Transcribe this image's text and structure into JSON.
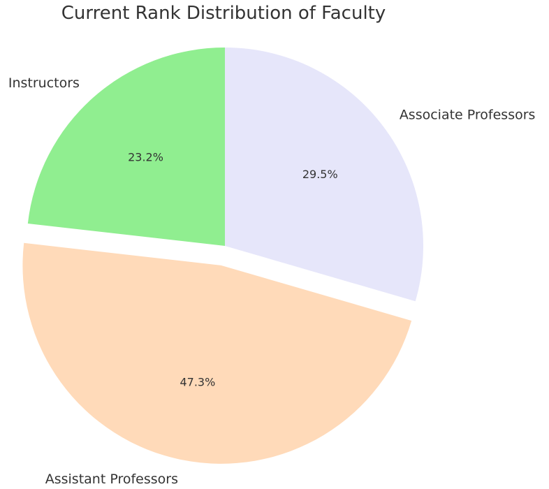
{
  "chart_data": {
    "type": "pie",
    "title": "Current Rank Distribution of Faculty",
    "start_angle_deg": 90,
    "direction": "counterclockwise",
    "slices": [
      {
        "label": "Instructors",
        "value": 23.2,
        "pct_label": "23.2%",
        "color": "#90ee90",
        "explode": 0
      },
      {
        "label": "Assistant Professors",
        "value": 47.3,
        "pct_label": "47.3%",
        "color": "#ffdab9",
        "explode": 0.1
      },
      {
        "label": "Associate Professors",
        "value": 29.5,
        "pct_label": "29.5%",
        "color": "#e6e6fa",
        "explode": 0
      }
    ]
  }
}
